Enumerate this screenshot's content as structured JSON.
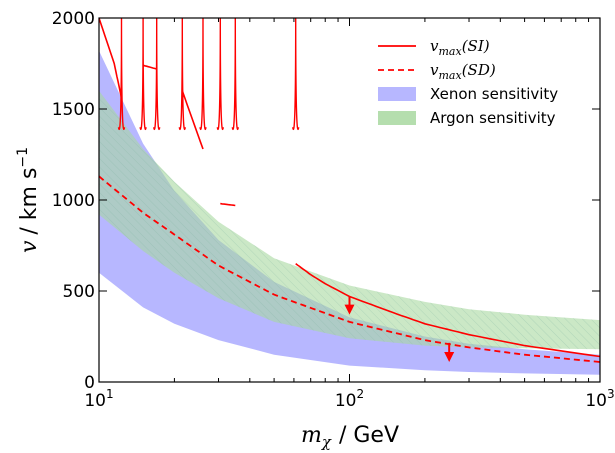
{
  "chart_data": {
    "type": "line",
    "title": "",
    "xlabel_math": "m",
    "xlabel_sub": "χ",
    "xlabel_unit": "/ GeV",
    "ylabel_math": "v",
    "ylabel_unit": "/ km s",
    "ylabel_sup": "−1",
    "xscale": "log",
    "xlim": [
      10,
      1000
    ],
    "ylim": [
      0,
      2000
    ],
    "x_ticks": [
      {
        "value": 10,
        "base": "10",
        "exp": "1"
      },
      {
        "value": 100,
        "base": "10",
        "exp": "2"
      },
      {
        "value": 1000,
        "base": "10",
        "exp": "3"
      }
    ],
    "y_ticks": [
      0,
      500,
      1000,
      1500,
      2000
    ],
    "legend": {
      "position": "top-right",
      "entries": [
        {
          "label_math": "v",
          "label_sub": "max",
          "label_paren": "(SI)",
          "style": "solid-line",
          "color": "#ff0000"
        },
        {
          "label_math": "v",
          "label_sub": "max",
          "label_paren": "(SD)",
          "style": "dashed-line",
          "color": "#ff0000"
        },
        {
          "label": "Xenon sensitivity",
          "style": "patch",
          "color": "#aaaaff"
        },
        {
          "label": "Argon sensitivity",
          "style": "patch",
          "color": "#a8d8a0"
        }
      ]
    },
    "series": [
      {
        "name": "v_max(SI)",
        "style": "solid",
        "color": "#ff0000",
        "resonances": [
          12.3,
          15,
          17,
          21.5,
          26,
          30.5,
          35,
          61
        ],
        "segments": [
          {
            "x": [
              10,
              11.5,
              12.3
            ],
            "y": [
              2000,
              1750,
              1560
            ]
          },
          {
            "x": [
              15,
              17
            ],
            "y": [
              1740,
              1720
            ]
          },
          {
            "x": [
              21.5,
              26
            ],
            "y": [
              1600,
              1280
            ]
          },
          {
            "x": [
              30.5,
              35
            ],
            "y": [
              980,
              970
            ]
          },
          {
            "x": [
              61,
              70,
              80,
              100,
              150,
              200,
              300,
              500,
              1000
            ],
            "y": [
              650,
              590,
              540,
              470,
              380,
              320,
              260,
              200,
              140
            ]
          }
        ]
      },
      {
        "name": "v_max(SD)",
        "style": "dashed",
        "color": "#ff0000",
        "x": [
          10,
          15,
          20,
          30,
          50,
          100,
          200,
          300,
          500,
          1000
        ],
        "y": [
          1130,
          930,
          810,
          640,
          480,
          330,
          230,
          190,
          150,
          110
        ]
      }
    ],
    "bands": [
      {
        "name": "Xenon sensitivity",
        "color": "#aaaaff",
        "x": [
          10,
          15,
          20,
          30,
          50,
          100,
          200,
          300,
          500,
          1000
        ],
        "upper": [
          1820,
          1310,
          1050,
          780,
          550,
          355,
          250,
          210,
          180,
          150
        ],
        "lower": [
          600,
          410,
          320,
          230,
          150,
          90,
          65,
          55,
          47,
          40
        ]
      },
      {
        "name": "Argon sensitivity",
        "color": "#a8d8a0",
        "x": [
          10,
          15,
          20,
          30,
          50,
          100,
          200,
          300,
          500,
          1000
        ],
        "upper": [
          1600,
          1280,
          1100,
          880,
          680,
          530,
          440,
          400,
          370,
          340
        ],
        "lower": [
          920,
          720,
          600,
          460,
          330,
          240,
          200,
          190,
          185,
          180
        ]
      }
    ],
    "arrows": [
      {
        "x": 100,
        "y_from": 470,
        "y_to": 370,
        "color": "#ff0000"
      },
      {
        "x": 250,
        "y_from": 215,
        "y_to": 110,
        "color": "#ff0000"
      }
    ],
    "grid": false
  }
}
